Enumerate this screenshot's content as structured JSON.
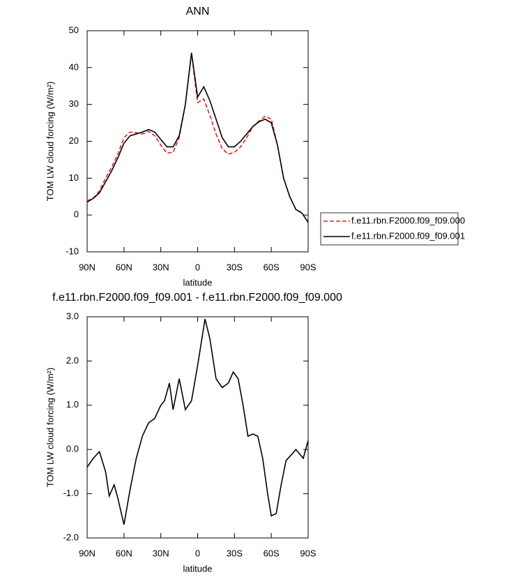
{
  "chart_data": [
    {
      "type": "line",
      "title": "ANN",
      "x_label": "latitude",
      "y_label": "TOM LW cloud forcing (W/m²)",
      "x": [
        90,
        85,
        80,
        75,
        70,
        65,
        60,
        55,
        50,
        45,
        40,
        35,
        30,
        25,
        20,
        15,
        10,
        5,
        0,
        -5,
        -10,
        -15,
        -20,
        -25,
        -30,
        -35,
        -40,
        -45,
        -50,
        -55,
        -60,
        -65,
        -70,
        -75,
        -80,
        -85,
        -90
      ],
      "xlim": [
        90,
        -90
      ],
      "xticks": [
        {
          "value": 90,
          "label": "90N"
        },
        {
          "value": 60,
          "label": "60N"
        },
        {
          "value": 30,
          "label": "30N"
        },
        0,
        {
          "value": -30,
          "label": "30S"
        },
        {
          "value": -60,
          "label": "60S"
        },
        {
          "value": -90,
          "label": "90S"
        }
      ],
      "ylim": [
        -10,
        50
      ],
      "yticks": [
        -10,
        0,
        10,
        20,
        30,
        40,
        50
      ],
      "legend": "right",
      "series": [
        {
          "name": "f.e11.rbn.F2000.f09_f09.000",
          "color": "#e0201b",
          "dash": true,
          "values": [
            3.8,
            4.6,
            6.5,
            10,
            13,
            16.5,
            21,
            22.5,
            22.3,
            22,
            22.7,
            21.5,
            19,
            16.8,
            17,
            21,
            30,
            44,
            30.5,
            31.5,
            27,
            22,
            18,
            16.5,
            17,
            18.5,
            21,
            24,
            25.5,
            26.8,
            26,
            19,
            10,
            5,
            1.5,
            0.6,
            -2
          ]
        },
        {
          "name": "f.e11.rbn.F2000.f09_f09.001",
          "color": "#000000",
          "dash": false,
          "values": [
            3.5,
            4.5,
            6,
            9,
            12,
            15.5,
            19.5,
            21.5,
            22,
            22.5,
            23.2,
            22.5,
            20.5,
            18.5,
            18.5,
            21.5,
            30,
            44,
            32,
            34.8,
            31,
            26,
            21,
            18.5,
            18.5,
            20,
            22,
            24,
            25.3,
            26,
            25,
            19,
            10,
            5,
            1.5,
            0.5,
            -2
          ]
        }
      ]
    },
    {
      "type": "line",
      "title": "f.e11.rbn.F2000.f09_f09.001 - f.e11.rbn.F2000.f09_f09.000",
      "x_label": "latitude",
      "y_label": "TOM LW cloud forcing (W/m²)",
      "x": [
        90,
        85,
        80,
        75,
        72,
        68,
        65,
        60,
        55,
        50,
        45,
        40,
        35,
        30,
        27,
        23,
        20,
        15,
        10,
        5,
        0,
        -6,
        -10,
        -15,
        -20,
        -25,
        -29,
        -33,
        -37,
        -41,
        -45,
        -49,
        -53,
        -57,
        -60,
        -64,
        -68,
        -72,
        -77,
        -80,
        -83,
        -86,
        -90
      ],
      "xlim": [
        90,
        -90
      ],
      "xticks": [
        {
          "value": 90,
          "label": "90N"
        },
        {
          "value": 60,
          "label": "60N"
        },
        {
          "value": 30,
          "label": "30N"
        },
        0,
        {
          "value": -30,
          "label": "30S"
        },
        {
          "value": -60,
          "label": "60S"
        },
        {
          "value": -90,
          "label": "90S"
        }
      ],
      "ylim": [
        -2,
        3
      ],
      "yticks": [
        {
          "value": -2,
          "label": "-2.0"
        },
        {
          "value": -1,
          "label": "-1.0"
        },
        {
          "value": 0,
          "label": "0.0"
        },
        {
          "value": 1,
          "label": "1.0"
        },
        {
          "value": 2,
          "label": "2.0"
        },
        {
          "value": 3,
          "label": "3.0"
        }
      ],
      "series": [
        {
          "color": "#000000",
          "dash": false,
          "values": [
            -0.4,
            -0.2,
            -0.05,
            -0.5,
            -1.05,
            -0.8,
            -1.1,
            -1.7,
            -0.9,
            -0.2,
            0.3,
            0.6,
            0.7,
            1.0,
            1.1,
            1.5,
            0.9,
            1.6,
            0.9,
            1.1,
            1.9,
            2.95,
            2.5,
            1.6,
            1.4,
            1.5,
            1.75,
            1.6,
            1.0,
            0.3,
            0.35,
            0.3,
            -0.2,
            -1.0,
            -1.5,
            -1.45,
            -0.8,
            -0.25,
            -0.1,
            0.0,
            -0.1,
            -0.2,
            0.2
          ]
        }
      ]
    }
  ]
}
